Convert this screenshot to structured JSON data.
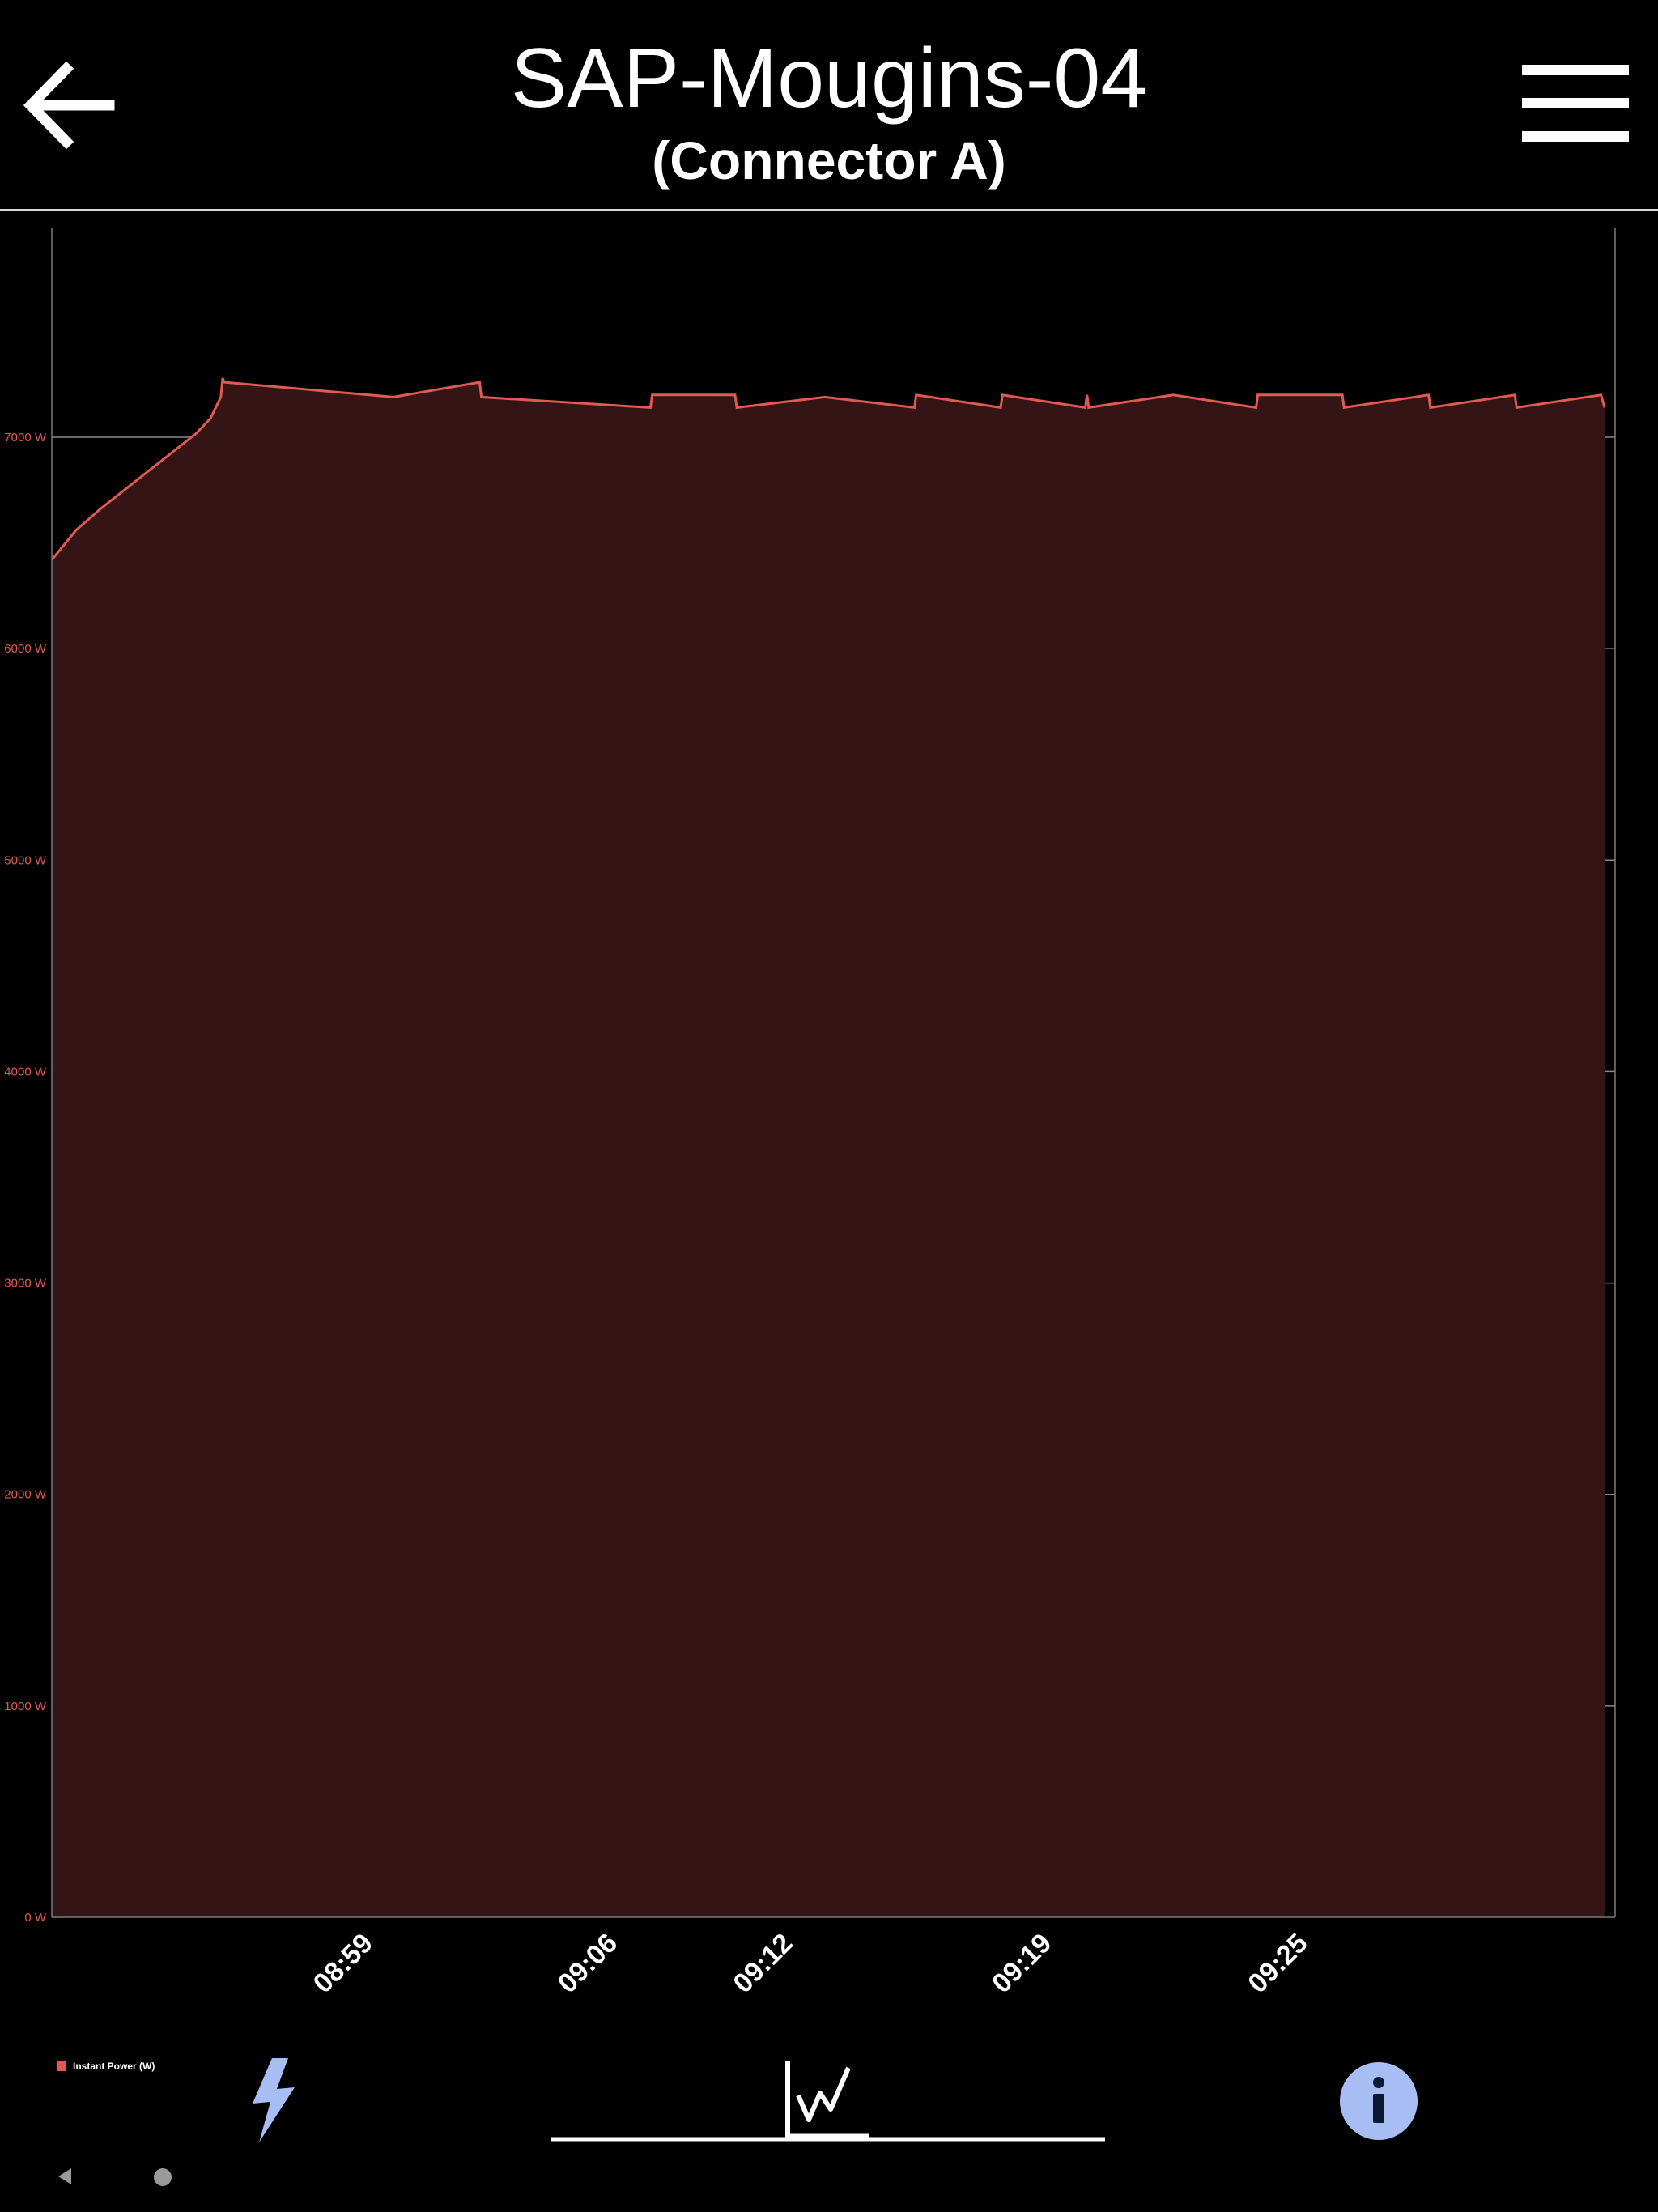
{
  "header": {
    "title": "SAP-Mougins-04",
    "subtitle": "(Connector A)"
  },
  "legend": {
    "label": "Instant Power (W)"
  },
  "colors": {
    "series": "#e05a52",
    "fill": "#351416",
    "info": "#a9bdf5"
  },
  "icons": {
    "back": "arrow-left-icon",
    "menu": "hamburger-menu-icon",
    "power": "lightning-bolt-icon",
    "graph": "line-graph-icon",
    "info": "info-icon"
  },
  "chart_data": {
    "type": "area",
    "title": "",
    "xlabel": "",
    "ylabel": "",
    "ylim": [
      0,
      8000
    ],
    "y_ticks": [
      "0 W",
      "1000 W",
      "2000 W",
      "3000 W",
      "4000 W",
      "5000 W",
      "6000 W",
      "7000 W"
    ],
    "x_ticks": [
      {
        "label": "08:59",
        "t": 8.83
      },
      {
        "label": "09:06",
        "t": 15.92
      },
      {
        "label": "09:12",
        "t": 21.0
      },
      {
        "label": "09:19",
        "t": 28.5
      },
      {
        "label": "09:25",
        "t": 35.92
      }
    ],
    "legend": "bottom-left",
    "series": [
      {
        "name": "Instant Power (W)",
        "points": [
          [
            0.0,
            6420
          ],
          [
            0.7,
            6560
          ],
          [
            1.4,
            6660
          ],
          [
            2.1,
            6750
          ],
          [
            2.8,
            6840
          ],
          [
            3.5,
            6930
          ],
          [
            4.2,
            7020
          ],
          [
            4.6,
            7090
          ],
          [
            4.9,
            7190
          ],
          [
            4.95,
            7280
          ],
          [
            5.0,
            7260
          ],
          [
            9.9,
            7190
          ],
          [
            12.4,
            7260
          ],
          [
            12.45,
            7190
          ],
          [
            17.35,
            7140
          ],
          [
            17.4,
            7200
          ],
          [
            19.8,
            7200
          ],
          [
            19.85,
            7140
          ],
          [
            22.4,
            7190
          ],
          [
            25.0,
            7140
          ],
          [
            25.05,
            7200
          ],
          [
            27.5,
            7140
          ],
          [
            27.55,
            7200
          ],
          [
            29.95,
            7140
          ],
          [
            30.0,
            7200
          ],
          [
            30.05,
            7140
          ],
          [
            32.5,
            7200
          ],
          [
            34.9,
            7140
          ],
          [
            34.95,
            7200
          ],
          [
            37.4,
            7200
          ],
          [
            37.45,
            7140
          ],
          [
            39.9,
            7200
          ],
          [
            39.95,
            7140
          ],
          [
            42.4,
            7200
          ],
          [
            42.45,
            7140
          ],
          [
            44.9,
            7200
          ],
          [
            45.0,
            7140
          ]
        ]
      }
    ]
  }
}
